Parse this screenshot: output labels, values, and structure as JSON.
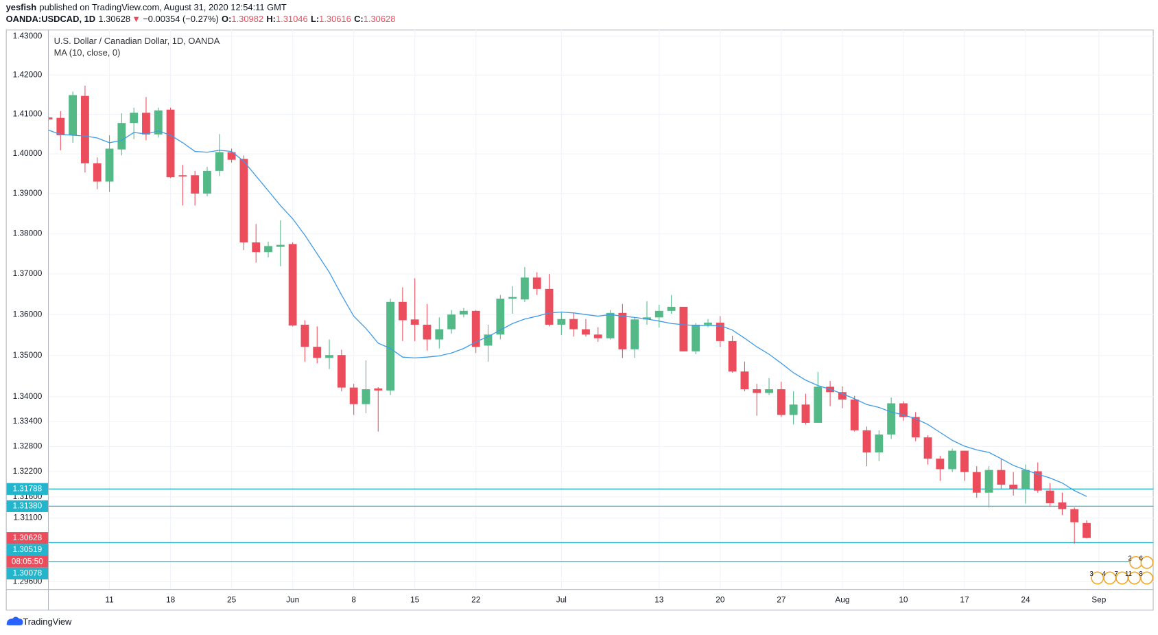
{
  "header": {
    "author": "yesfish",
    "published": "published on TradingView.com, August 31, 2020 12:54:11 GMT",
    "symbol": "OANDA:USDCAD, 1D",
    "price": "1.30628",
    "arrow": "▼",
    "change": "−0.00354 (−0.27%)",
    "o_label": "O:",
    "o": "1.30982",
    "h_label": "H:",
    "h": "1.31046",
    "l_label": "L:",
    "l": "1.30616",
    "c_label": "C:",
    "c": "1.30628"
  },
  "chart_data": {
    "type": "candlestick",
    "log": true,
    "grid": true,
    "categories": [
      null,
      null,
      null,
      null,
      null,
      "11",
      null,
      null,
      null,
      null,
      "18",
      null,
      null,
      null,
      null,
      "25",
      null,
      null,
      null,
      null,
      "Jun",
      null,
      null,
      null,
      null,
      "8",
      null,
      null,
      null,
      null,
      "15",
      null,
      null,
      null,
      null,
      "22",
      null,
      null,
      null,
      null,
      null,
      null,
      "Jul",
      null,
      null,
      null,
      null,
      null,
      null,
      null,
      "13",
      null,
      null,
      null,
      null,
      "20",
      null,
      null,
      null,
      null,
      "27",
      null,
      null,
      null,
      null,
      "Aug",
      null,
      null,
      null,
      null,
      "10",
      null,
      null,
      null,
      null,
      "17",
      null,
      null,
      null,
      null,
      "24",
      null,
      null,
      null,
      null,
      null,
      "Sep"
    ],
    "series": [
      {
        "name": "U.S. Dollar / Canadian Dollar, 1D, OANDA",
        "type": "candlestick",
        "up_color": "#53b987",
        "down_color": "#eb4d5c",
        "open": [
          1.4092,
          1.4091,
          1.4047,
          1.4147,
          1.3976,
          1.393,
          1.4011,
          1.4078,
          1.4104,
          1.4049,
          1.4112,
          1.3946,
          1.3946,
          1.39,
          1.3957,
          1.4004,
          1.3987,
          1.3778,
          1.3754,
          1.3767,
          1.3774,
          1.3575,
          1.3521,
          1.3494,
          1.3501,
          1.3422,
          1.3382,
          1.342,
          1.3415,
          1.3631,
          1.3588,
          1.3575,
          1.3539,
          1.3564,
          1.36,
          1.3609,
          1.3524,
          1.3551,
          1.3639,
          1.3637,
          1.3691,
          1.3663,
          1.3575,
          1.3589,
          1.3564,
          1.3551,
          1.3542,
          1.3604,
          1.3515,
          1.3588,
          1.3593,
          1.3609,
          1.3619,
          1.351,
          1.3575,
          1.358,
          1.3535,
          1.3461,
          1.3418,
          1.3409,
          1.3418,
          1.3356,
          1.3381,
          1.3337,
          1.3424,
          1.3411,
          1.3393,
          1.3319,
          1.3266,
          1.3309,
          1.3384,
          1.3351,
          1.3302,
          1.3251,
          1.3226,
          1.327,
          1.3219,
          1.317,
          1.3224,
          1.3189,
          1.3179,
          1.3221,
          1.3175,
          1.3147,
          1.3131,
          1.30982,
          null
        ],
        "high": [
          1.4095,
          1.4108,
          1.4158,
          1.4173,
          1.3991,
          1.4047,
          1.4103,
          1.4117,
          1.4144,
          1.4117,
          1.4117,
          1.3972,
          1.3957,
          1.3967,
          1.405,
          1.4013,
          1.3996,
          1.3824,
          1.378,
          1.3833,
          1.3778,
          1.3586,
          1.3571,
          1.3539,
          1.3514,
          1.3431,
          1.3488,
          1.3423,
          1.3639,
          1.3667,
          1.3689,
          1.3626,
          1.3593,
          1.3611,
          1.3616,
          1.3611,
          1.3575,
          1.3648,
          1.367,
          1.3717,
          1.3704,
          1.37,
          1.3607,
          1.3604,
          1.3589,
          1.3569,
          1.3611,
          1.3626,
          1.3593,
          1.3633,
          1.3624,
          1.3648,
          1.3619,
          1.3579,
          1.3589,
          1.3596,
          1.3548,
          1.3485,
          1.3431,
          1.3445,
          1.3436,
          1.3413,
          1.3407,
          1.346,
          1.3438,
          1.3425,
          1.3402,
          1.3328,
          1.3319,
          1.3398,
          1.3389,
          1.3363,
          1.3307,
          1.3258,
          1.3275,
          1.327,
          1.3233,
          1.3233,
          1.3251,
          1.3219,
          1.3237,
          1.3242,
          1.3193,
          1.317,
          1.3135,
          1.31046,
          null
        ],
        "low": [
          1.4085,
          1.4009,
          1.4028,
          1.3953,
          1.3911,
          1.3904,
          1.3996,
          1.4037,
          1.4034,
          1.4041,
          1.3939,
          1.387,
          1.387,
          1.3893,
          1.3944,
          1.3978,
          1.3759,
          1.3728,
          1.3741,
          1.3719,
          1.3571,
          1.3485,
          1.3481,
          1.3467,
          1.3413,
          1.3356,
          1.336,
          1.3316,
          1.3404,
          1.3535,
          1.3535,
          1.3512,
          1.3517,
          1.3553,
          1.3593,
          1.3506,
          1.3485,
          1.3539,
          1.3602,
          1.3631,
          1.3648,
          1.3571,
          1.355,
          1.3546,
          1.3546,
          1.3533,
          1.3539,
          1.3494,
          1.3494,
          1.3575,
          1.3568,
          1.3602,
          1.351,
          1.3503,
          1.3569,
          1.3521,
          1.3458,
          1.3413,
          1.3354,
          1.3404,
          1.3351,
          1.3333,
          1.3333,
          1.3337,
          1.3377,
          1.3372,
          1.3316,
          1.3233,
          1.3245,
          1.3298,
          1.3342,
          1.3293,
          1.3237,
          1.3198,
          1.3219,
          1.3198,
          1.3158,
          1.3135,
          1.318,
          1.3163,
          1.3144,
          1.317,
          1.3137,
          1.3117,
          1.3049,
          1.30616,
          null
        ],
        "close": [
          1.4087,
          1.4047,
          1.4149,
          1.3976,
          1.393,
          1.4013,
          1.4078,
          1.4104,
          1.4049,
          1.411,
          1.3941,
          1.3943,
          1.39,
          1.3957,
          1.4004,
          1.3985,
          1.3778,
          1.3754,
          1.3769,
          1.3772,
          1.3573,
          1.3521,
          1.3494,
          1.3501,
          1.3422,
          1.3382,
          1.3418,
          1.3415,
          1.3631,
          1.3586,
          1.3575,
          1.3539,
          1.3564,
          1.36,
          1.3609,
          1.3521,
          1.3551,
          1.3639,
          1.3643,
          1.3691,
          1.3663,
          1.3575,
          1.3589,
          1.3564,
          1.3551,
          1.3542,
          1.3604,
          1.3515,
          1.3588,
          1.3593,
          1.3609,
          1.3619,
          1.351,
          1.3575,
          1.358,
          1.3535,
          1.3461,
          1.3418,
          1.3409,
          1.3418,
          1.3356,
          1.3381,
          1.3337,
          1.3424,
          1.3411,
          1.3393,
          1.3319,
          1.3266,
          1.3309,
          1.3384,
          1.3351,
          1.3302,
          1.3251,
          1.3226,
          1.327,
          1.3219,
          1.317,
          1.3224,
          1.3189,
          1.3179,
          1.3224,
          1.3175,
          1.3145,
          1.3131,
          1.31,
          1.30628,
          null
        ]
      },
      {
        "name": "MA (10, close, 0)",
        "type": "line",
        "color": "#3d9ae8",
        "values": [
          1.406,
          1.4049,
          1.4047,
          1.4045,
          1.404,
          1.4028,
          1.4034,
          1.4054,
          1.405,
          1.4058,
          1.4047,
          1.4028,
          1.4006,
          1.4004,
          1.4009,
          1.4006,
          1.3981,
          1.3944,
          1.3907,
          1.387,
          1.3837,
          1.3796,
          1.375,
          1.3704,
          1.3648,
          1.3596,
          1.3566,
          1.353,
          1.3517,
          1.3496,
          1.3494,
          1.3496,
          1.3499,
          1.3506,
          1.3517,
          1.3533,
          1.3546,
          1.3562,
          1.3578,
          1.3589,
          1.3596,
          1.3604,
          1.3606,
          1.3604,
          1.36,
          1.3596,
          1.36,
          1.3596,
          1.3593,
          1.3589,
          1.3584,
          1.3578,
          1.3575,
          1.3573,
          1.3573,
          1.3573,
          1.3562,
          1.3542,
          1.3521,
          1.3503,
          1.3481,
          1.3458,
          1.344,
          1.3427,
          1.3418,
          1.3407,
          1.3395,
          1.3381,
          1.3374,
          1.3363,
          1.3356,
          1.3347,
          1.3333,
          1.3314,
          1.3295,
          1.3281,
          1.3272,
          1.3266,
          1.3251,
          1.3235,
          1.3224,
          1.3214,
          1.3205,
          1.3193,
          1.3175,
          1.3161,
          null
        ]
      }
    ],
    "ylim": [
      1.2943,
      1.4317
    ],
    "yticks": [
      {
        "value": 1.43,
        "label": "1.43000"
      },
      {
        "value": 1.42,
        "label": "1.42000"
      },
      {
        "value": 1.41,
        "label": "1.41000"
      },
      {
        "value": 1.4,
        "label": "1.40000"
      },
      {
        "value": 1.39,
        "label": "1.39000"
      },
      {
        "value": 1.38,
        "label": "1.38000"
      },
      {
        "value": 1.37,
        "label": "1.37000"
      },
      {
        "value": 1.36,
        "label": "1.36000"
      },
      {
        "value": 1.35,
        "label": "1.35000"
      },
      {
        "value": 1.34,
        "label": "1.34000"
      },
      {
        "value": 1.334,
        "label": "1.33400"
      },
      {
        "value": 1.328,
        "label": "1.32800"
      },
      {
        "value": 1.322,
        "label": "1.32200"
      },
      {
        "value": 1.316,
        "label": "1.31600"
      },
      {
        "value": 1.311,
        "label": "1.31100"
      },
      {
        "value": 1.296,
        "label": "1.29600"
      }
    ],
    "horizontal_lines": [
      1.31788,
      {
        "value": 1.3138,
        "label": "1.31380"
      },
      1.30519,
      1.30078
    ],
    "hline_color": "#22b5cc",
    "last_price": 1.30628,
    "countdown": "08:05:50",
    "price_color": "#eb4d5c",
    "events": {
      "row1": [
        "2",
        "6"
      ],
      "row2": [
        "3",
        "4",
        "7",
        "11",
        "8"
      ]
    }
  },
  "footer": {
    "brand": "TradingView"
  }
}
